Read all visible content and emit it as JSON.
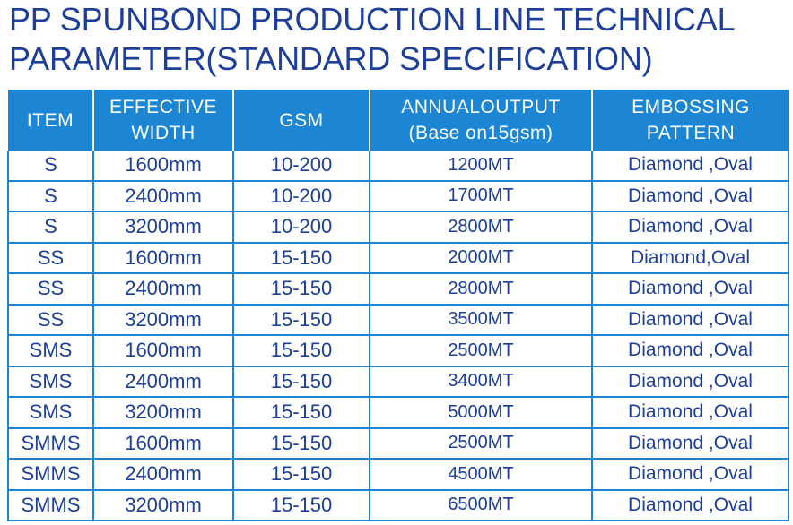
{
  "title": {
    "line1": "PP SPUNBOND PRODUCTION LINE TECHNICAL",
    "line2": "PARAMETER(STANDARD SPECIFICATION)"
  },
  "table": {
    "headers": {
      "item": [
        "ITEM"
      ],
      "width": [
        "EFFECTIVE",
        "WIDTH"
      ],
      "gsm": [
        "GSM"
      ],
      "output": [
        "ANNUALOUTPUT",
        "(Base on15gsm)"
      ],
      "pattern": [
        "EMBOSSING",
        "PATTERN"
      ]
    },
    "rows": [
      {
        "item": "S",
        "width": "1600mm",
        "gsm": "10-200",
        "output": "1200MT",
        "pattern": "Diamond ,Oval"
      },
      {
        "item": "S",
        "width": "2400mm",
        "gsm": "10-200",
        "output": "1700MT",
        "pattern": "Diamond ,Oval"
      },
      {
        "item": "S",
        "width": "3200mm",
        "gsm": "10-200",
        "output": "2800MT",
        "pattern": "Diamond ,Oval"
      },
      {
        "item": "SS",
        "width": "1600mm",
        "gsm": "15-150",
        "output": "2000MT",
        "pattern": "Diamond,Oval"
      },
      {
        "item": "SS",
        "width": "2400mm",
        "gsm": "15-150",
        "output": "2800MT",
        "pattern": "Diamond ,Oval"
      },
      {
        "item": "SS",
        "width": "3200mm",
        "gsm": "15-150",
        "output": "3500MT",
        "pattern": "Diamond ,Oval"
      },
      {
        "item": "SMS",
        "width": "1600mm",
        "gsm": "15-150",
        "output": "2500MT",
        "pattern": "Diamond ,Oval"
      },
      {
        "item": "SMS",
        "width": "2400mm",
        "gsm": "15-150",
        "output": "3400MT",
        "pattern": "Diamond ,Oval"
      },
      {
        "item": "SMS",
        "width": "3200mm",
        "gsm": "15-150",
        "output": "5000MT",
        "pattern": "Diamond ,Oval"
      },
      {
        "item": "SMMS",
        "width": "1600mm",
        "gsm": "15-150",
        "output": "2500MT",
        "pattern": "Diamond ,Oval"
      },
      {
        "item": "SMMS",
        "width": "2400mm",
        "gsm": "15-150",
        "output": "4500MT",
        "pattern": "Diamond ,Oval"
      },
      {
        "item": "SMMS",
        "width": "3200mm",
        "gsm": "15-150",
        "output": "6500MT",
        "pattern": "Diamond ,Oval"
      }
    ]
  },
  "colors": {
    "title": "#1d3f9a",
    "header_bg": "#1d86d4",
    "header_text": "#ffffff",
    "cell_text": "#1d3f9a",
    "grid": "#1d86d4"
  }
}
